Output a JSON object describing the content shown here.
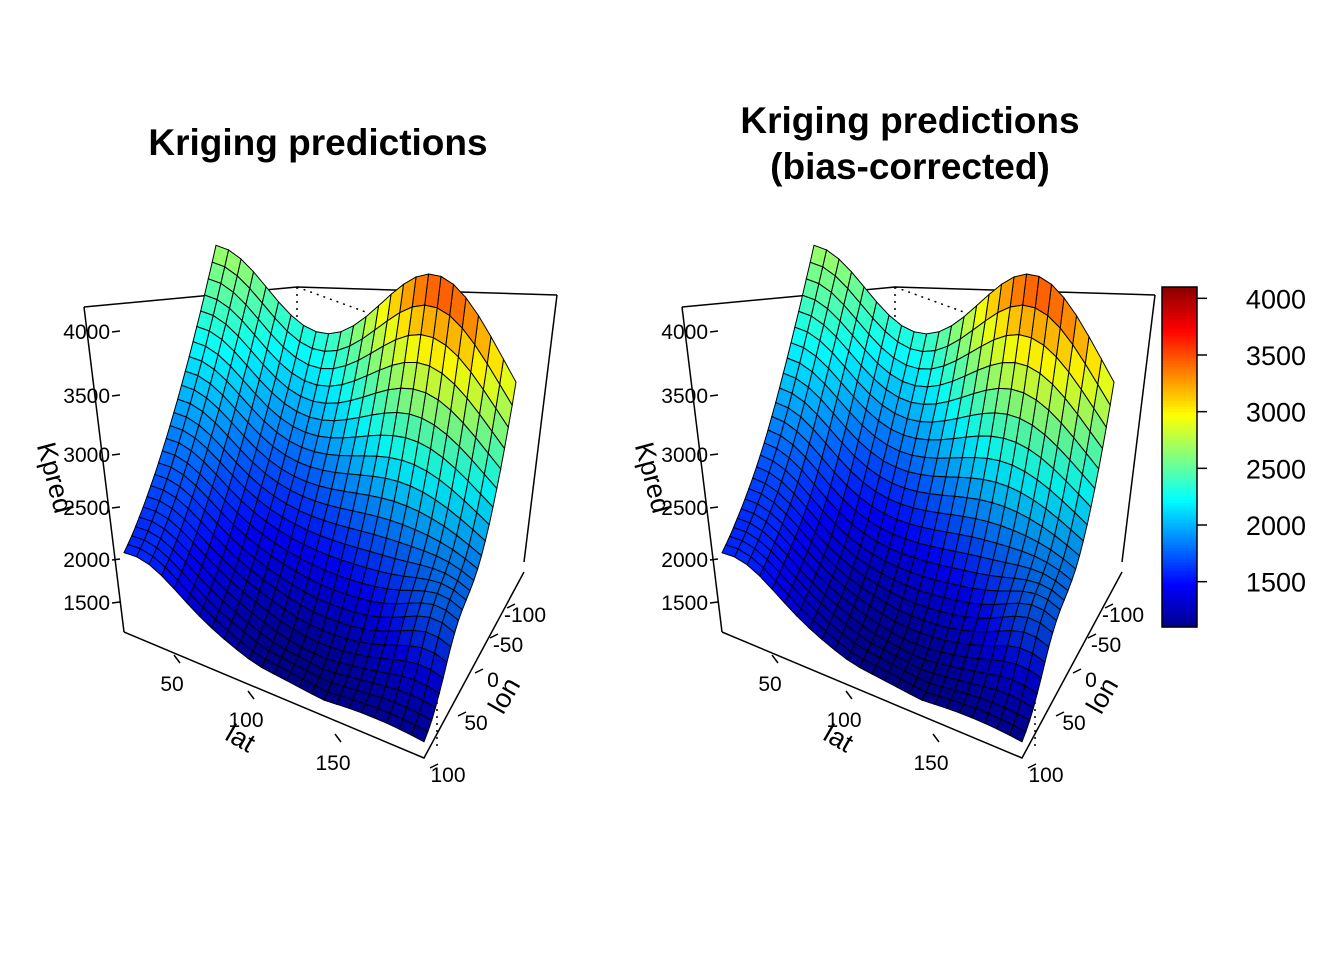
{
  "chart_data": [
    {
      "type": "surface",
      "title": "Kriging predictions",
      "xlabel": "lat",
      "ylabel": "lon",
      "zlabel": "Kpred",
      "x_ticks": [
        50,
        100,
        150
      ],
      "y_ticks": [
        -100,
        -50,
        0,
        50,
        100
      ],
      "z_ticks": [
        1500,
        2000,
        2500,
        3000,
        3500,
        4000
      ],
      "zlim": [
        1100,
        4100
      ]
    },
    {
      "type": "surface",
      "title": "Kriging predictions\n(bias-corrected)",
      "xlabel": "lat",
      "ylabel": "lon",
      "zlabel": "Kpred",
      "x_ticks": [
        50,
        100,
        150
      ],
      "y_ticks": [
        -100,
        -50,
        0,
        50,
        100
      ],
      "z_ticks": [
        1500,
        2000,
        2500,
        3000,
        3500,
        4000
      ],
      "zlim": [
        1100,
        4100
      ]
    }
  ],
  "colorbar": {
    "ticks": [
      1500,
      2000,
      2500,
      3000,
      3500,
      4000
    ],
    "range": [
      1100,
      4100
    ],
    "palette": [
      "#00008B",
      "#0000FF",
      "#0080FF",
      "#00FFFF",
      "#80FF80",
      "#FFFF00",
      "#FF8000",
      "#FF0000",
      "#8B0000"
    ]
  }
}
